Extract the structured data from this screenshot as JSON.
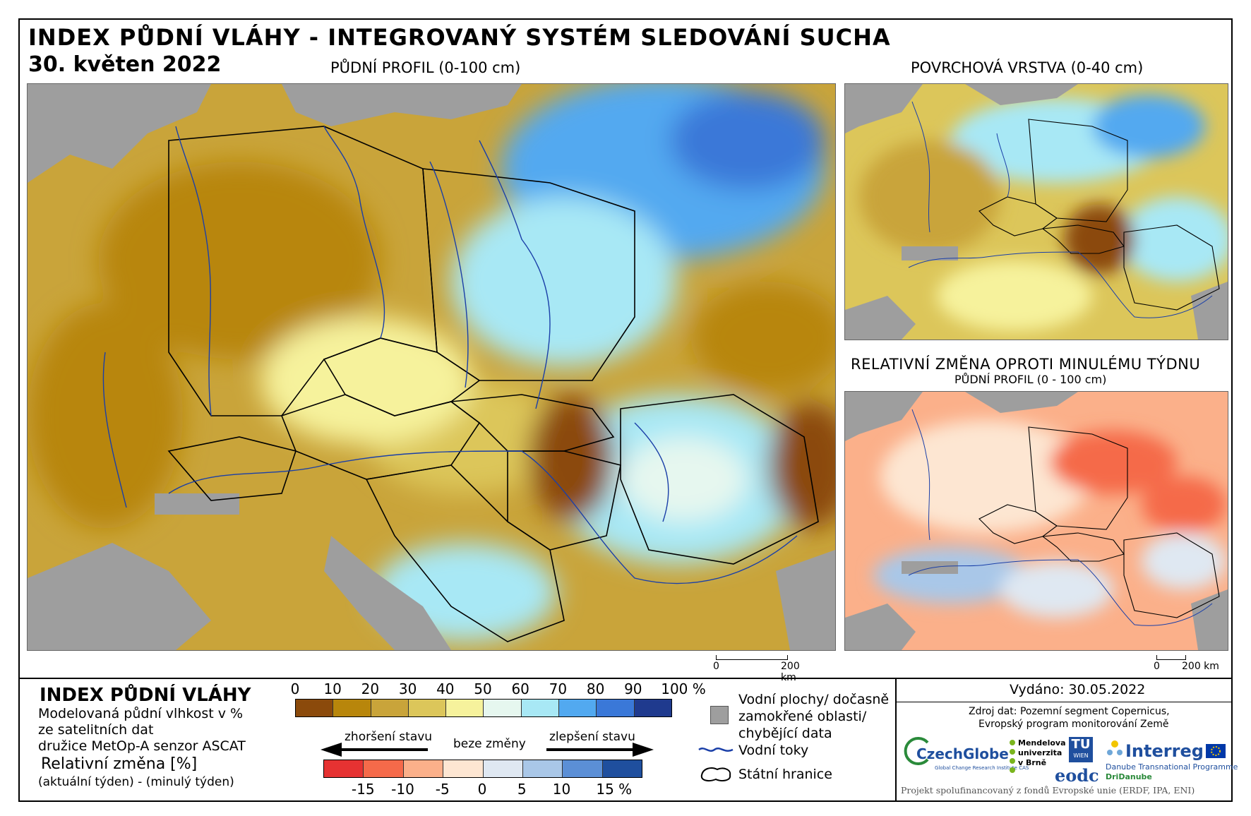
{
  "header": {
    "title": "INDEX PŮDNÍ VLÁHY - INTEGROVANÝ SYSTÉM SLEDOVÁNÍ SUCHA",
    "date": "30. květen 2022"
  },
  "panels": {
    "main_label": "PŮDNÍ PROFIL (0-100 cm)",
    "top_right_label": "POVRCHOVÁ VRSTVA (0-40 cm)",
    "bottom_right_label": "RELATIVNÍ ZMĚNA OPROTI MINULÉMU TÝDNU",
    "bottom_right_sublabel": "PŮDNÍ PROFIL (0 - 100 cm)"
  },
  "scalebars": {
    "main": {
      "start": "0",
      "end": "200 km"
    },
    "small": {
      "start": "0",
      "end": "200 km"
    }
  },
  "legend": {
    "index_title": "INDEX PŮDNÍ VLÁHY",
    "index_desc_1": "Modelovaná půdní vlhkost v %",
    "index_desc_2": "ze satelitních dat",
    "index_desc_3": "družice MetOp-A senzor ASCAT",
    "rel_title": "Relativní změna [%]",
    "rel_desc": "(aktuální týden) - (minulý týden)",
    "index_ticks": [
      "0",
      "10",
      "20",
      "30",
      "40",
      "50",
      "60",
      "70",
      "80",
      "90",
      "100 %"
    ],
    "index_colors": [
      "#8b4a0b",
      "#b8860b",
      "#c9a43a",
      "#dcc65a",
      "#f6f29c",
      "#e6f7ef",
      "#a8e8f5",
      "#52a9f0",
      "#3a78d8",
      "#1f3a8e"
    ],
    "change_worse": "zhoršení stavu",
    "change_none": "beze změny",
    "change_better": "zlepšení stavu",
    "change_ticks": [
      "-15",
      "-10",
      "-5",
      "0",
      "5",
      "10",
      "15 %"
    ],
    "change_colors": [
      "#e63232",
      "#f56a4a",
      "#fbb08a",
      "#fde6d2",
      "#dfe8f2",
      "#a9c7e8",
      "#5b8fd6",
      "#1f4f9e"
    ],
    "water_label_1": "Vodní plochy/ dočasně",
    "water_label_2": "zamokřené oblasti/",
    "water_label_3": "chybějící data",
    "rivers_label": "Vodní toky",
    "borders_label": "Státní hranice"
  },
  "footer": {
    "issued": "Vydáno: 30.05.2022",
    "source_1": "Zdroj dat: Pozemní segment Copernicus,",
    "source_2": "Evropský program monitorování Země",
    "czechglobe": "CzechGlobe",
    "czechglobe_sub": "Global Change Research Institute CAS",
    "mendel": "Mendelova univerzita v Brně",
    "tuwien_1": "TU",
    "tuwien_2": "WIEN",
    "eodc": "eodc",
    "interreg": "Interreg",
    "interreg_sub_1": "Danube Transnational Programme",
    "interreg_sub_2": "DriDanube",
    "funding": "Projekt spolufinancovaný z fondů Evropské unie (ERDF, IPA, ENI)"
  },
  "colors": {
    "gray_missing": "#9e9e9e",
    "river": "#1a3fa8",
    "border": "#000000"
  }
}
